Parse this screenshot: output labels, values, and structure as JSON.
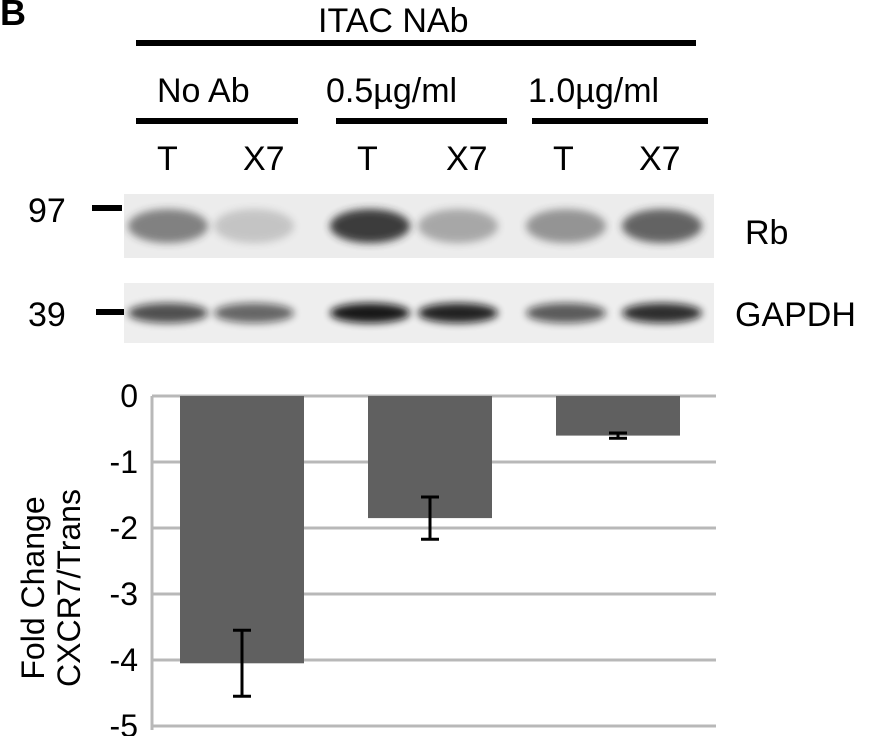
{
  "panel": {
    "label": "B"
  },
  "blot": {
    "treatment_header": "ITAC NAb",
    "groups": [
      {
        "label": "No Ab"
      },
      {
        "label": "0.5µg/ml"
      },
      {
        "label": "1.0µg/ml"
      }
    ],
    "lanes": [
      "T",
      "X7",
      "T",
      "X7",
      "T",
      "X7"
    ],
    "markers": [
      {
        "label": "97",
        "row": "Rb"
      },
      {
        "label": "39",
        "row": "GAPDH"
      }
    ],
    "rows": [
      {
        "name": "Rb",
        "band_intensity": [
          0.55,
          0.2,
          0.9,
          0.35,
          0.45,
          0.7
        ],
        "color": "#2a2a2a"
      },
      {
        "name": "GAPDH",
        "band_intensity": [
          0.7,
          0.6,
          0.95,
          0.9,
          0.65,
          0.85
        ],
        "color": "#111111"
      }
    ]
  },
  "chart_data": {
    "type": "bar",
    "categories": [
      "No Ab",
      "0.5µg/ml",
      "1.0µg/ml"
    ],
    "series": [
      {
        "values": [
          -4.05,
          -1.85,
          -0.6
        ],
        "error": [
          0.5,
          0.32,
          0.04
        ]
      }
    ],
    "ylabel": [
      "Fold Change",
      "CXCR7/Trans"
    ],
    "ylim": [
      -5,
      0
    ],
    "yticks": [
      0,
      -1,
      -2,
      -3,
      -4,
      -5
    ],
    "ytick_labels": [
      "0",
      "-1",
      "-2",
      "-3",
      "-4",
      "-5"
    ],
    "grid": true,
    "bar_color": "#606060",
    "grid_color": "#b8b8b8",
    "error_bar_color": "#000000"
  }
}
